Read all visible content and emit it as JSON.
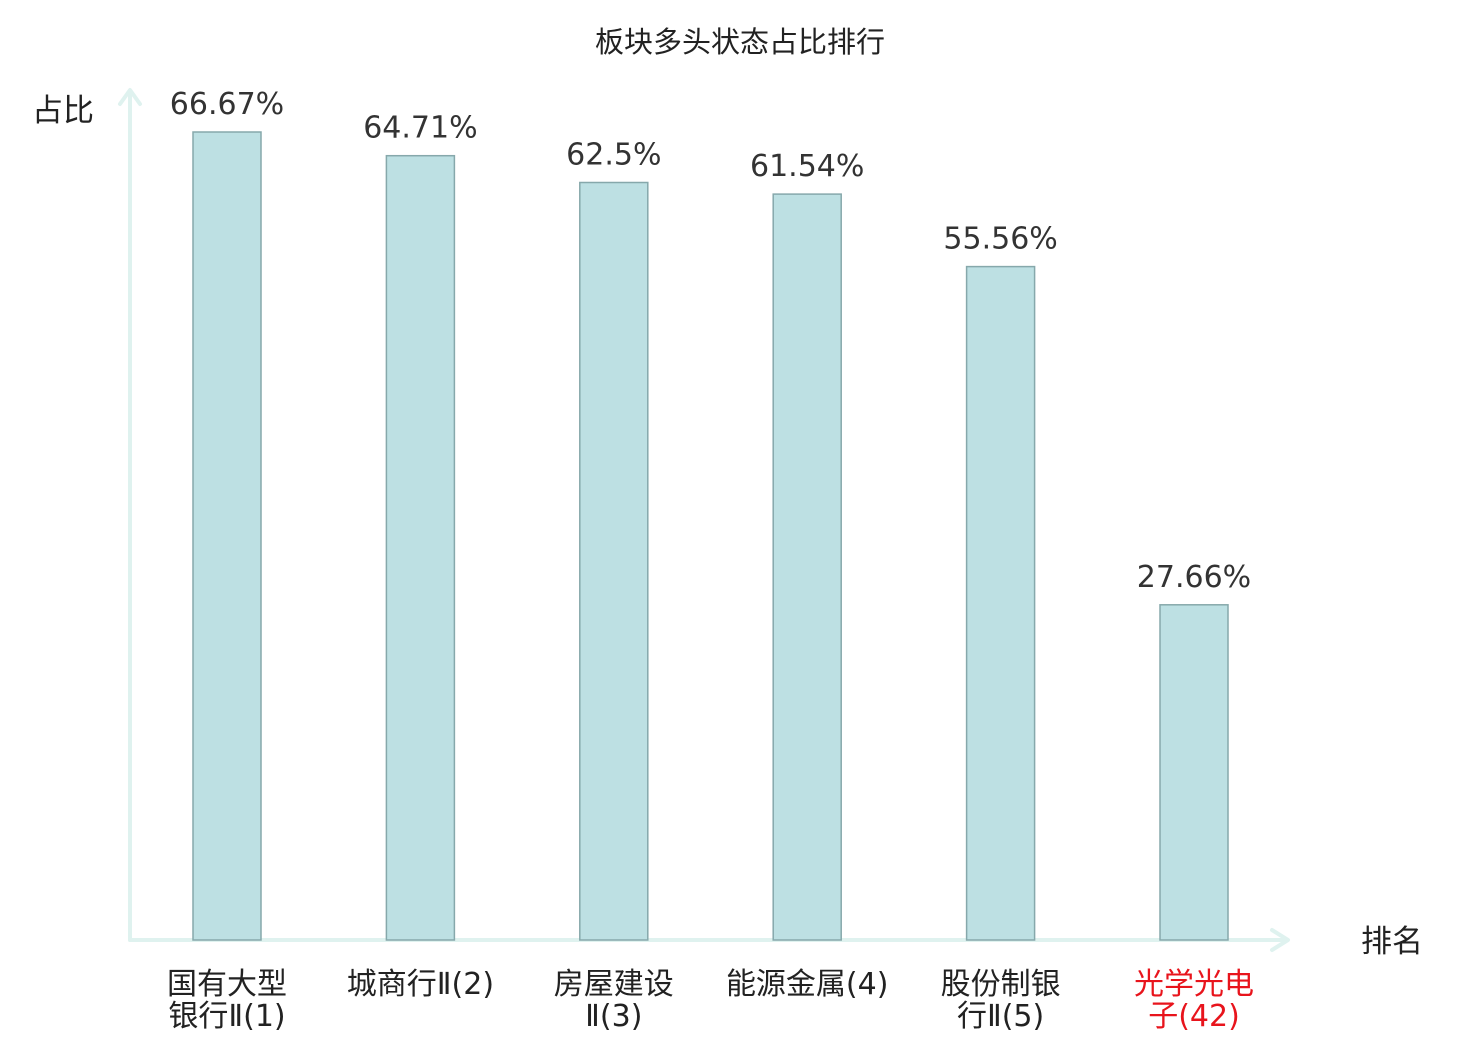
{
  "chart_data": {
    "type": "bar",
    "title": "板块多头状态占比排行",
    "ylabel": "占比",
    "xlabel": "排名",
    "categories": [
      [
        "国有大型",
        "银行Ⅱ(1)"
      ],
      [
        "城商行Ⅱ(2)"
      ],
      [
        "房屋建设",
        "Ⅱ(3)"
      ],
      [
        "能源金属(4)"
      ],
      [
        "股份制银",
        "行Ⅱ(5)"
      ],
      [
        "光学光电",
        "子(42)"
      ]
    ],
    "values": [
      66.67,
      64.71,
      62.5,
      61.54,
      55.56,
      27.66
    ],
    "value_labels": [
      "66.67%",
      "64.71%",
      "62.5%",
      "61.54%",
      "55.56%",
      "27.66%"
    ],
    "highlight_index": 5,
    "ylim": [
      0,
      70
    ],
    "grid": false,
    "colors": {
      "bar_fill": "#bde0e3",
      "bar_stroke": "#86a8ab",
      "axis": "#dff2ef",
      "label_text": "#222222",
      "highlight_text": "#e8141c"
    }
  }
}
